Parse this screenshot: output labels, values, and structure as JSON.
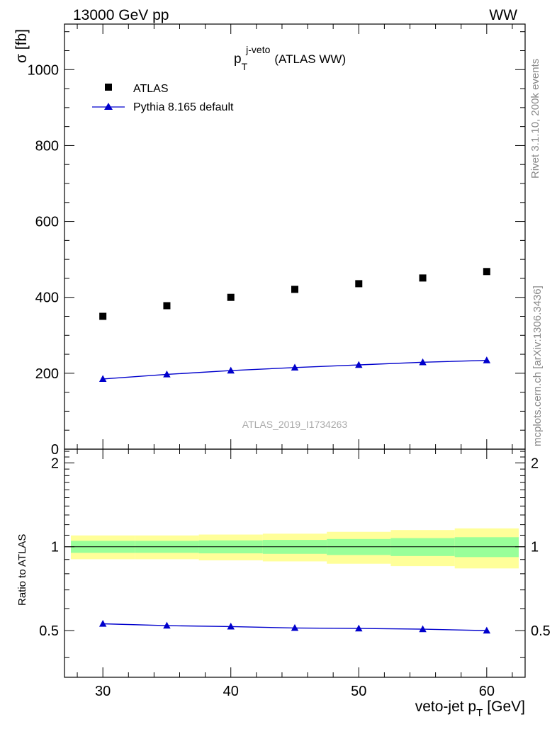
{
  "header": {
    "left": "13000 GeV pp",
    "right": "WW"
  },
  "side_labels": {
    "rivet": "Rivet 3.1.10,  200k events",
    "mcplots": "mcplots.cern.ch [arXiv:1306.3436]"
  },
  "main_title": {
    "p": "p",
    "sub": "T",
    "sup": "j-veto",
    "rest": "(ATLAS WW)"
  },
  "analysis_id": "ATLAS_2019_I1734263",
  "colors": {
    "data": "#000000",
    "mc": "#0000cc",
    "band_inner": "#99ff99",
    "band_outer": "#ffff99",
    "axis": "#000000",
    "grey_text": "#888888"
  },
  "chart_data": [
    {
      "type": "scatter",
      "ylabel": "σ [fb]",
      "xlim": [
        27,
        63
      ],
      "ylim": [
        0,
        1120
      ],
      "yticks": [
        0,
        200,
        400,
        600,
        800,
        1000
      ],
      "legend_position": "top-left",
      "series": [
        {
          "name": "ATLAS",
          "marker": "square",
          "x": [
            30,
            35,
            40,
            45,
            50,
            55,
            60
          ],
          "values": [
            350,
            378,
            400,
            421,
            436,
            451,
            468
          ]
        },
        {
          "name": "Pythia 8.165 default",
          "marker": "triangle",
          "line": true,
          "x": [
            30,
            35,
            40,
            45,
            50,
            55,
            60
          ],
          "values": [
            185,
            197,
            207,
            215,
            222,
            229,
            234
          ]
        }
      ]
    },
    {
      "type": "line",
      "xlabel": "veto-jet p",
      "xlabel_sub": "T",
      "xlabel_unit": "[GeV]",
      "ylabel": "Ratio to ATLAS",
      "xlim": [
        27,
        63
      ],
      "ylim": [
        0.34,
        2.24
      ],
      "yticks": [
        0.5,
        1,
        2
      ],
      "ytick_labels": [
        "0.5",
        "1",
        "2"
      ],
      "xticks": [
        30,
        40,
        50,
        60
      ],
      "xtick_labels": [
        "30",
        "40",
        "50",
        "60"
      ],
      "bins": [
        {
          "lo": 27.5,
          "hi": 32.5,
          "inner": [
            0.951,
            1.05
          ],
          "outer": [
            0.902,
            1.098
          ]
        },
        {
          "lo": 32.5,
          "hi": 37.5,
          "inner": [
            0.951,
            1.05
          ],
          "outer": [
            0.902,
            1.098
          ]
        },
        {
          "lo": 37.5,
          "hi": 42.5,
          "inner": [
            0.947,
            1.054
          ],
          "outer": [
            0.894,
            1.106
          ]
        },
        {
          "lo": 42.5,
          "hi": 47.5,
          "inner": [
            0.943,
            1.058
          ],
          "outer": [
            0.886,
            1.114
          ]
        },
        {
          "lo": 47.5,
          "hi": 52.5,
          "inner": [
            0.934,
            1.066
          ],
          "outer": [
            0.869,
            1.131
          ]
        },
        {
          "lo": 52.5,
          "hi": 57.5,
          "inner": [
            0.926,
            1.074
          ],
          "outer": [
            0.852,
            1.148
          ]
        },
        {
          "lo": 57.5,
          "hi": 62.5,
          "inner": [
            0.918,
            1.082
          ],
          "outer": [
            0.836,
            1.164
          ]
        }
      ],
      "series": [
        {
          "name": "Pythia 8.165 default",
          "marker": "triangle",
          "x": [
            30,
            35,
            40,
            45,
            50,
            55,
            60
          ],
          "values": [
            0.529,
            0.521,
            0.517,
            0.511,
            0.509,
            0.506,
            0.5
          ]
        }
      ]
    }
  ]
}
